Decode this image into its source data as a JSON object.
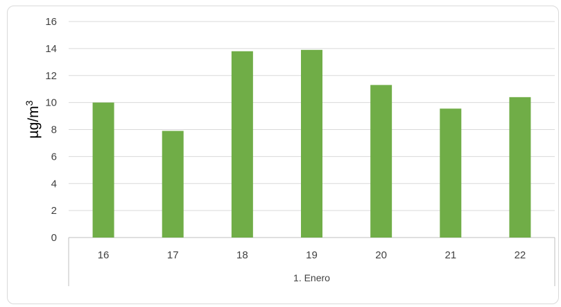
{
  "chart_data": {
    "type": "bar",
    "title": "",
    "xlabel": "",
    "ylabel": "µg/m",
    "ylabel_superscript": "3",
    "group_label": "1. Enero",
    "categories": [
      "16",
      "17",
      "18",
      "19",
      "20",
      "21",
      "22"
    ],
    "values": [
      10.0,
      7.9,
      13.8,
      13.9,
      11.3,
      9.55,
      10.4
    ],
    "ylim": [
      0,
      16
    ],
    "yticks": [
      "0",
      "2",
      "4",
      "6",
      "8",
      "10",
      "12",
      "14",
      "16"
    ],
    "grid": true,
    "legend": "none",
    "bar_color": "#70ad47",
    "grid_color": "#d9d9d9",
    "axis_color": "#bfbfbf"
  }
}
